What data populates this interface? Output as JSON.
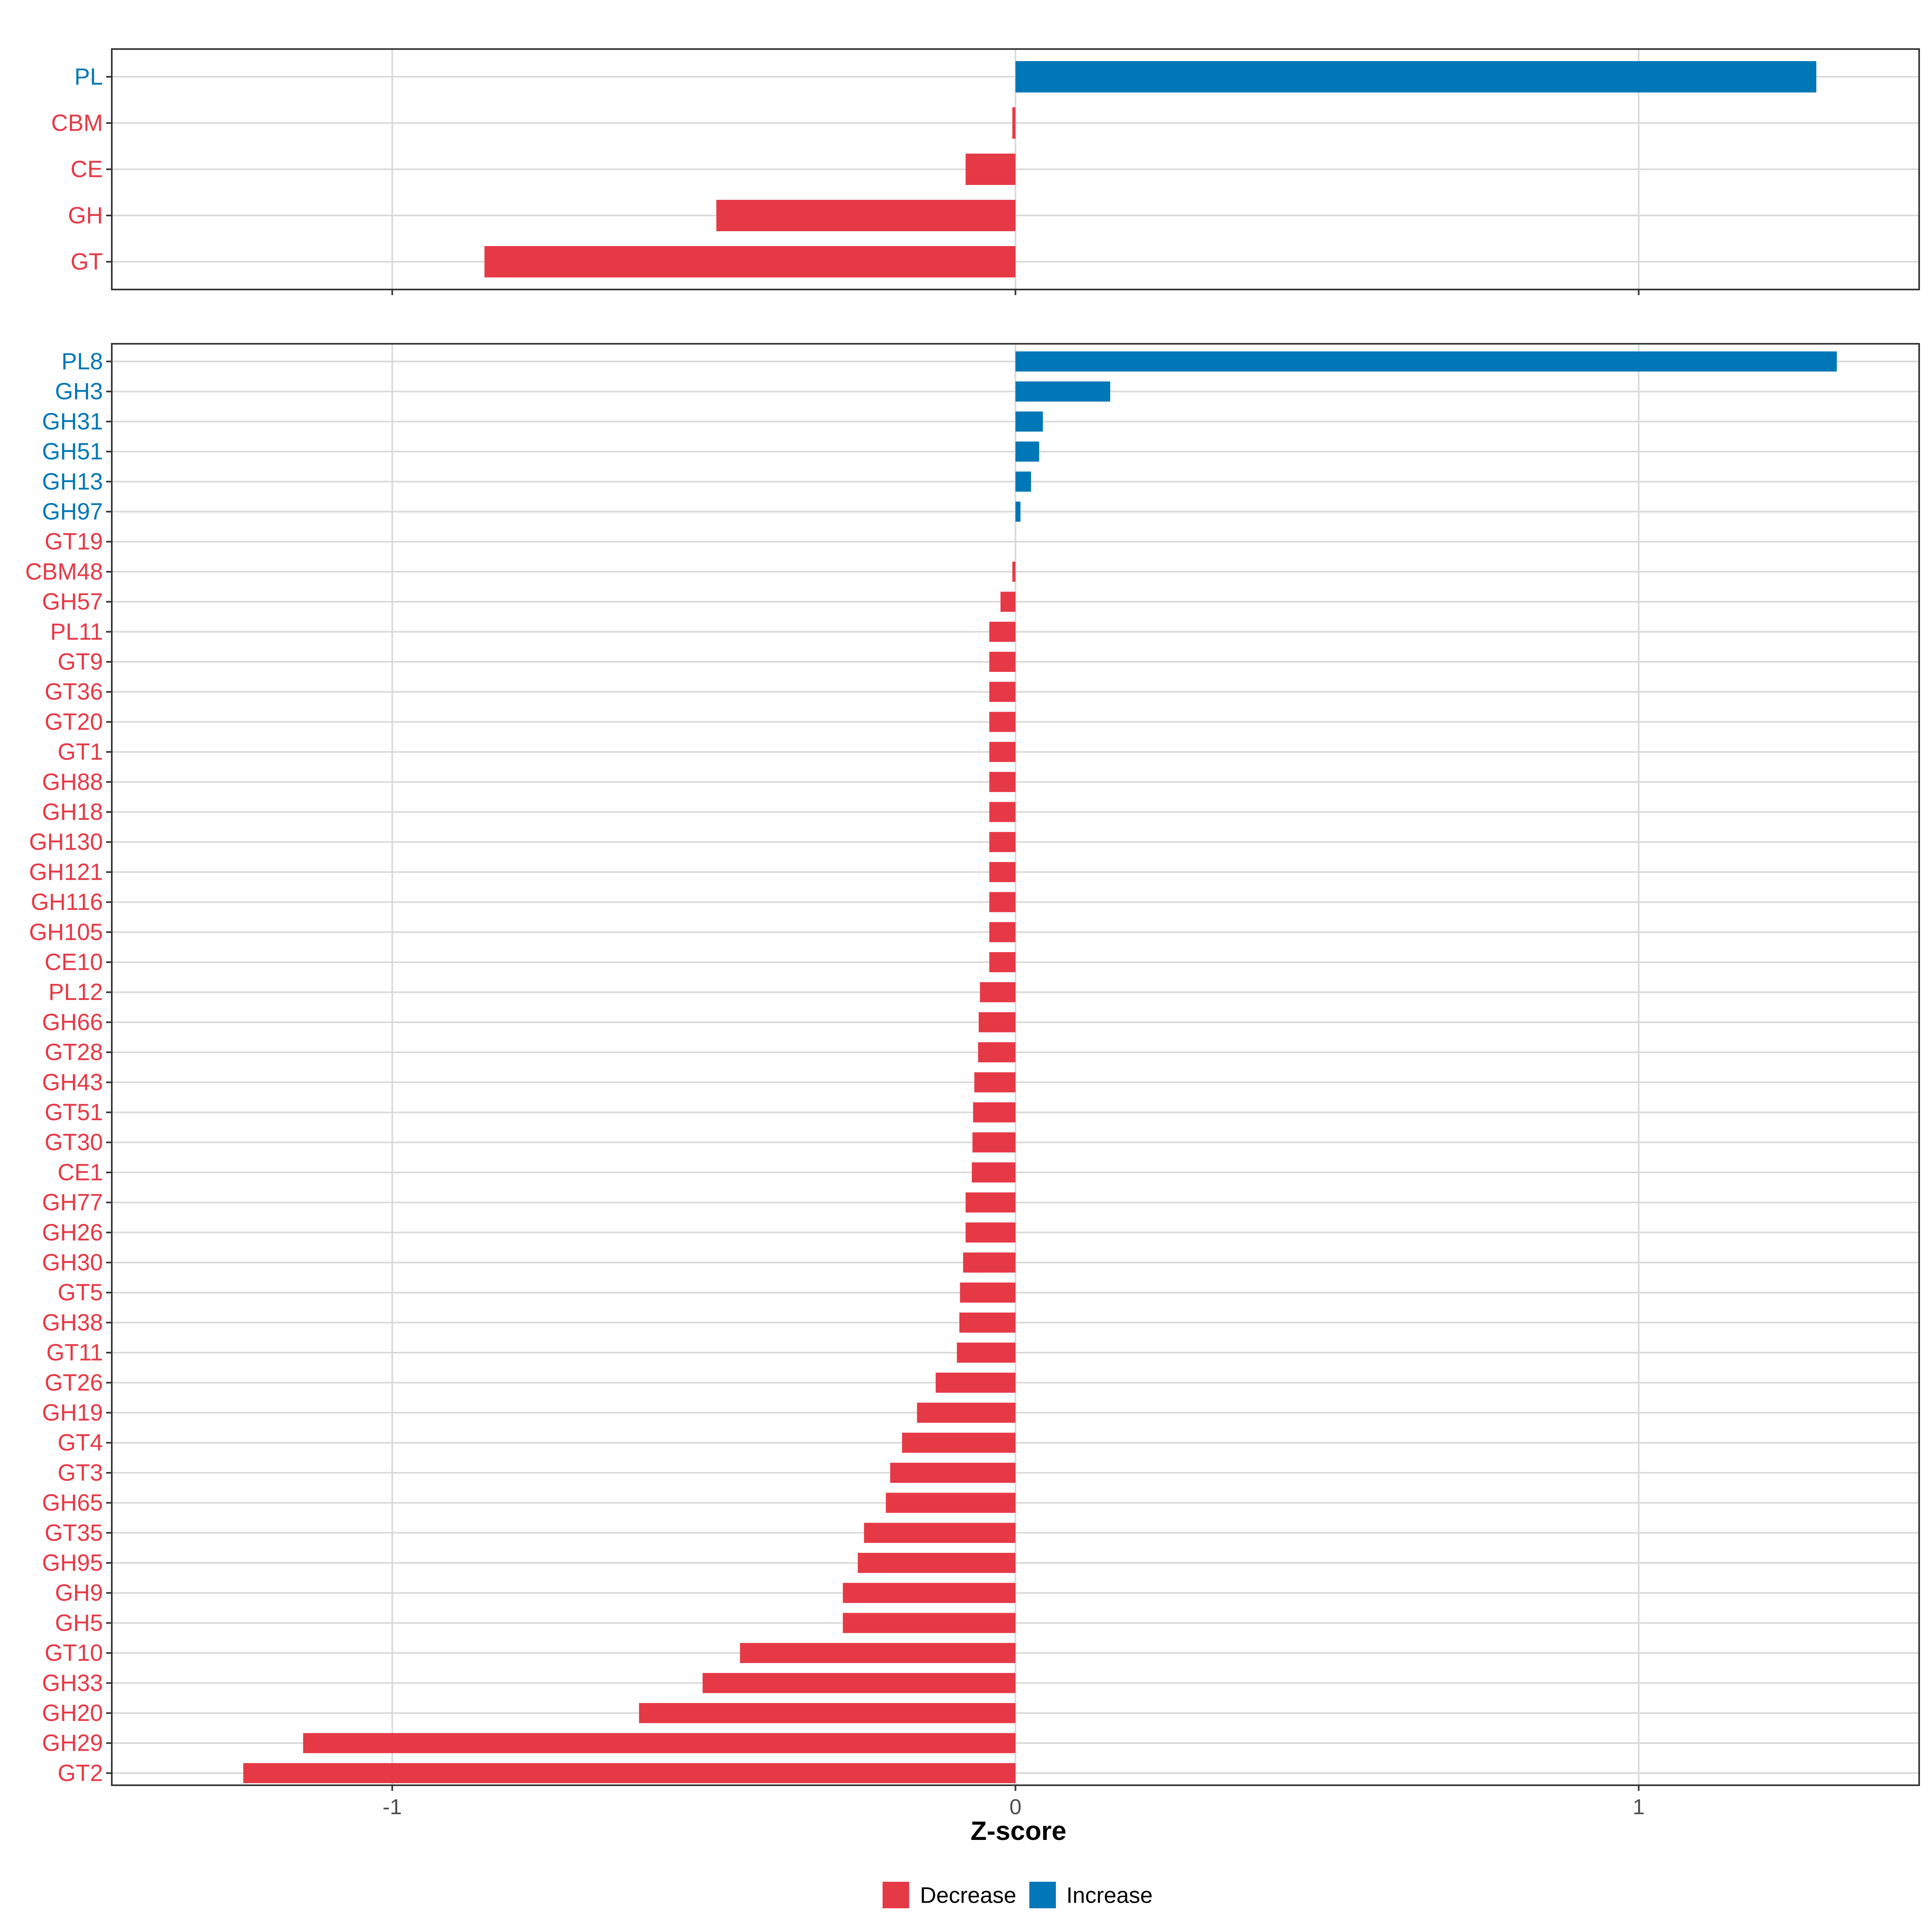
{
  "colors": {
    "decrease": "#E63946",
    "increase": "#0077B6",
    "grid": "#D9D9D9",
    "panel_border": "#333333"
  },
  "chart_data": [
    {
      "type": "bar",
      "orientation": "horizontal",
      "panel": "class",
      "xlim": [
        -1.45,
        1.45
      ],
      "x_ticks": [
        -1,
        0,
        1
      ],
      "x_tick_labels": [
        "-1",
        "0",
        "1"
      ],
      "grid": true,
      "categories": [
        "PL",
        "CBM",
        "CE",
        "GH",
        "GT"
      ],
      "values": [
        1.285,
        -0.005,
        -0.08,
        -0.48,
        -0.852
      ],
      "direction": [
        "Increase",
        "Decrease",
        "Decrease",
        "Decrease",
        "Decrease"
      ]
    },
    {
      "type": "bar",
      "orientation": "horizontal",
      "panel": "family",
      "xlim": [
        -1.45,
        1.45
      ],
      "x_ticks": [
        -1,
        0,
        1
      ],
      "x_tick_labels": [
        "-1",
        "0",
        "1"
      ],
      "grid": true,
      "xlabel": "Z-score",
      "categories": [
        "PL8",
        "GH3",
        "GH31",
        "GH51",
        "GH13",
        "GH97",
        "GT19",
        "CBM48",
        "GH57",
        "PL11",
        "GT9",
        "GT36",
        "GT20",
        "GT1",
        "GH88",
        "GH18",
        "GH130",
        "GH121",
        "GH116",
        "GH105",
        "CE10",
        "PL12",
        "GH66",
        "GT28",
        "GH43",
        "GT51",
        "GT30",
        "CE1",
        "GH77",
        "GH26",
        "GH30",
        "GT5",
        "GH38",
        "GT11",
        "GT26",
        "GH19",
        "GT4",
        "GT3",
        "GH65",
        "GT35",
        "GH95",
        "GH9",
        "GH5",
        "GT10",
        "GH33",
        "GH20",
        "GH29",
        "GT2"
      ],
      "values": [
        1.318,
        0.152,
        0.044,
        0.038,
        0.025,
        0.008,
        0.0,
        -0.005,
        -0.024,
        -0.042,
        -0.042,
        -0.042,
        -0.042,
        -0.042,
        -0.042,
        -0.042,
        -0.042,
        -0.042,
        -0.042,
        -0.042,
        -0.042,
        -0.057,
        -0.059,
        -0.06,
        -0.066,
        -0.068,
        -0.069,
        -0.07,
        -0.08,
        -0.08,
        -0.084,
        -0.089,
        -0.09,
        -0.094,
        -0.128,
        -0.158,
        -0.182,
        -0.201,
        -0.208,
        -0.243,
        -0.253,
        -0.277,
        -0.277,
        -0.442,
        -0.502,
        -0.604,
        -1.143,
        -1.239
      ],
      "direction": [
        "Increase",
        "Increase",
        "Increase",
        "Increase",
        "Increase",
        "Increase",
        "Decrease",
        "Decrease",
        "Decrease",
        "Decrease",
        "Decrease",
        "Decrease",
        "Decrease",
        "Decrease",
        "Decrease",
        "Decrease",
        "Decrease",
        "Decrease",
        "Decrease",
        "Decrease",
        "Decrease",
        "Decrease",
        "Decrease",
        "Decrease",
        "Decrease",
        "Decrease",
        "Decrease",
        "Decrease",
        "Decrease",
        "Decrease",
        "Decrease",
        "Decrease",
        "Decrease",
        "Decrease",
        "Decrease",
        "Decrease",
        "Decrease",
        "Decrease",
        "Decrease",
        "Decrease",
        "Decrease",
        "Decrease",
        "Decrease",
        "Decrease",
        "Decrease",
        "Decrease",
        "Decrease",
        "Decrease"
      ]
    }
  ],
  "legend": {
    "position": "bottom",
    "items": [
      {
        "label": "Decrease",
        "key": "decrease"
      },
      {
        "label": "Increase",
        "key": "increase"
      }
    ]
  }
}
